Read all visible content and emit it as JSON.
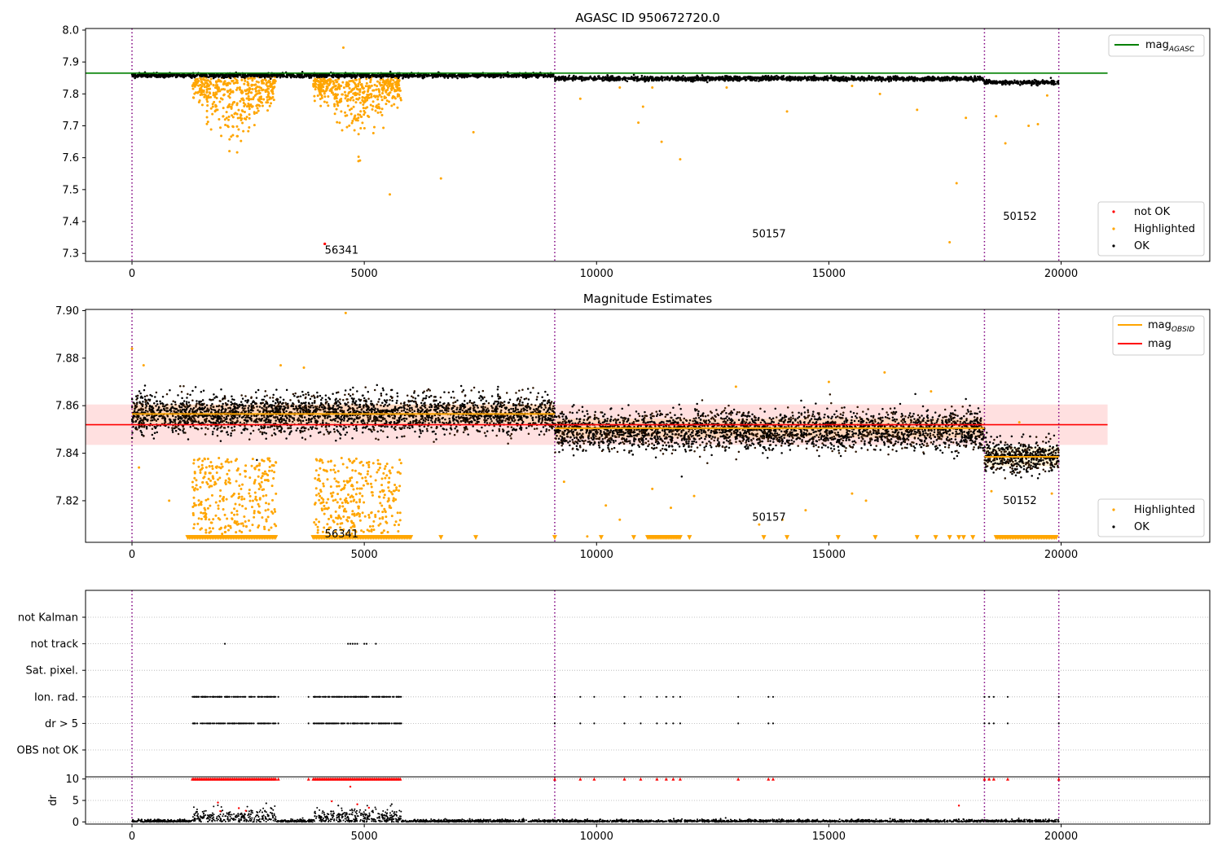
{
  "chart_data": [
    {
      "type": "scatter",
      "title": "AGASC ID 950672720.0",
      "xlabel": "",
      "ylabel": "",
      "xlim": [
        -1000,
        23200
      ],
      "ylim": [
        7.275,
        8.005
      ],
      "xticks": [
        0,
        5000,
        10000,
        15000,
        20000
      ],
      "yticks": [
        7.3,
        7.4,
        7.5,
        7.6,
        7.7,
        7.8,
        7.9,
        8.0
      ],
      "grid": false,
      "obs_boundaries": [
        0,
        9100,
        18350,
        19950
      ],
      "reference_lines": [
        {
          "name": "mag$_{AGASC}$",
          "label_main": "mag",
          "label_sub": "AGASC",
          "y": 7.865,
          "x_range": [
            -1000,
            21000
          ],
          "color": "#008000"
        }
      ],
      "series": [
        {
          "name": "not OK",
          "color": "#ff0000"
        },
        {
          "name": "Highlighted",
          "color": "#ffa500"
        },
        {
          "name": "OK",
          "color": "#000000"
        }
      ],
      "ok_bands": [
        {
          "x0": 0,
          "x1": 9100,
          "ymid": 7.858,
          "spread": 0.006
        },
        {
          "x0": 9100,
          "x1": 18350,
          "ymid": 7.848,
          "spread": 0.006
        },
        {
          "x0": 18350,
          "x1": 19950,
          "ymid": 7.836,
          "spread": 0.006
        }
      ],
      "highlight_clusters": [
        {
          "x": [
            1300,
            3100
          ],
          "y": [
            7.43,
            7.86
          ],
          "n": 420
        },
        {
          "x": [
            3900,
            5800
          ],
          "y": [
            7.35,
            7.86
          ],
          "n": 460
        }
      ],
      "highlight_points": [
        {
          "x": 4550,
          "y": 7.945
        },
        {
          "x": 7350,
          "y": 7.68
        },
        {
          "x": 6650,
          "y": 7.535
        },
        {
          "x": 5550,
          "y": 7.485
        },
        {
          "x": 9650,
          "y": 7.785
        },
        {
          "x": 10900,
          "y": 7.71
        },
        {
          "x": 11400,
          "y": 7.65
        },
        {
          "x": 11800,
          "y": 7.595
        },
        {
          "x": 14100,
          "y": 7.745
        },
        {
          "x": 16900,
          "y": 7.75
        },
        {
          "x": 17600,
          "y": 7.335
        },
        {
          "x": 17750,
          "y": 7.52
        },
        {
          "x": 17950,
          "y": 7.725
        },
        {
          "x": 18600,
          "y": 7.73
        },
        {
          "x": 18800,
          "y": 7.645
        },
        {
          "x": 19300,
          "y": 7.7
        },
        {
          "x": 19500,
          "y": 7.705
        },
        {
          "x": 12800,
          "y": 7.82
        },
        {
          "x": 15500,
          "y": 7.825
        },
        {
          "x": 16100,
          "y": 7.8
        },
        {
          "x": 19700,
          "y": 7.795
        },
        {
          "x": 10500,
          "y": 7.82
        },
        {
          "x": 11000,
          "y": 7.76
        },
        {
          "x": 11200,
          "y": 7.82
        }
      ],
      "notok_points": [
        {
          "x": 4150,
          "y": 7.33
        }
      ],
      "annotations": [
        {
          "text": "56341",
          "x": 4150,
          "y": 7.31
        },
        {
          "text": "50157",
          "x": 13350,
          "y": 7.36
        },
        {
          "text": "50152",
          "x": 18750,
          "y": 7.415
        }
      ]
    },
    {
      "type": "scatter",
      "title": "Magnitude Estimates",
      "xlabel": "",
      "ylabel": "",
      "xlim": [
        -1000,
        23200
      ],
      "ylim": [
        7.8025,
        7.9005
      ],
      "xticks": [
        0,
        5000,
        10000,
        15000,
        20000
      ],
      "yticks": [
        7.82,
        7.84,
        7.86,
        7.88,
        7.9
      ],
      "grid": false,
      "obs_boundaries": [
        0,
        9100,
        18350,
        19950
      ],
      "reference_lines": [
        {
          "name": "mag$_{OBSID}$",
          "label_main": "mag",
          "label_sub": "OBSID",
          "color": "#ffa500",
          "segments": [
            {
              "x0": 0,
              "x1": 9100,
              "y": 7.8565,
              "band": 0.004
            },
            {
              "x0": 9100,
              "x1": 18350,
              "y": 7.8505,
              "band": 0.004
            },
            {
              "x0": 18350,
              "x1": 19950,
              "y": 7.8385,
              "band": 0.004
            }
          ]
        },
        {
          "name": "mag",
          "label_main": "mag",
          "label_sub": "",
          "y": 7.852,
          "x_range": [
            -1000,
            21000
          ],
          "band": [
            7.8435,
            7.8605
          ],
          "color": "#ff0000"
        }
      ],
      "series": [
        {
          "name": "Highlighted",
          "color": "#ffa500"
        },
        {
          "name": "OK",
          "color": "#000000"
        }
      ],
      "ok_bands": [
        {
          "x0": 0,
          "x1": 9100,
          "ymid": 7.8565,
          "spread": 0.0065
        },
        {
          "x0": 9100,
          "x1": 18350,
          "ymid": 7.8495,
          "spread": 0.0065
        },
        {
          "x0": 18350,
          "x1": 19950,
          "ymid": 7.8385,
          "spread": 0.0055
        }
      ],
      "highlight_clusters": [
        {
          "x": [
            1300,
            3100
          ],
          "y": [
            7.806,
            7.838
          ],
          "n": 300
        },
        {
          "x": [
            3900,
            5800
          ],
          "y": [
            7.806,
            7.838
          ],
          "n": 320
        }
      ],
      "highlight_points": [
        {
          "x": 4600,
          "y": 7.899
        },
        {
          "x": 0,
          "y": 7.884
        },
        {
          "x": 250,
          "y": 7.877
        },
        {
          "x": 3200,
          "y": 7.877
        },
        {
          "x": 3700,
          "y": 7.876
        },
        {
          "x": 150,
          "y": 7.834
        },
        {
          "x": 800,
          "y": 7.82
        },
        {
          "x": 9300,
          "y": 7.828
        },
        {
          "x": 10500,
          "y": 7.812
        },
        {
          "x": 11200,
          "y": 7.825
        },
        {
          "x": 12100,
          "y": 7.822
        },
        {
          "x": 13500,
          "y": 7.81
        },
        {
          "x": 14000,
          "y": 7.812
        },
        {
          "x": 14500,
          "y": 7.816
        },
        {
          "x": 15500,
          "y": 7.823
        },
        {
          "x": 15800,
          "y": 7.82
        },
        {
          "x": 16200,
          "y": 7.874
        },
        {
          "x": 17200,
          "y": 7.866
        },
        {
          "x": 18500,
          "y": 7.824
        },
        {
          "x": 19100,
          "y": 7.853
        },
        {
          "x": 19800,
          "y": 7.823
        },
        {
          "x": 13000,
          "y": 7.868
        },
        {
          "x": 15000,
          "y": 7.87
        },
        {
          "x": 9800,
          "y": 7.805
        },
        {
          "x": 11600,
          "y": 7.817
        },
        {
          "x": 10200,
          "y": 7.818
        }
      ],
      "lower_limit_markers": {
        "y": 7.8045,
        "ranges": [
          [
            1200,
            3100
          ],
          [
            3900,
            6000
          ],
          [
            11100,
            11800
          ],
          [
            18600,
            19900
          ]
        ],
        "x": [
          6650,
          7400,
          9100,
          10100,
          10800,
          12000,
          13600,
          14100,
          15200,
          16000,
          16900,
          17300,
          17600,
          17800,
          17900,
          18100
        ]
      },
      "annotations": [
        {
          "text": "56341",
          "x": 4150,
          "y": 7.806
        },
        {
          "text": "50157",
          "x": 13350,
          "y": 7.813
        },
        {
          "text": "50152",
          "x": 18750,
          "y": 7.82
        }
      ]
    },
    {
      "type": "scatter",
      "title": "",
      "xlabel": "",
      "ylabel": "",
      "xlim": [
        -1000,
        23200
      ],
      "categories": [
        "not Kalman",
        "not track",
        "Sat. pixel.",
        "Ion. rad.",
        "dr > 5",
        "OBS not OK"
      ],
      "grid": true,
      "obs_boundaries": [
        0,
        9100,
        18350,
        19950
      ],
      "flag_points": {
        "not track": [
          2000,
          4650,
          4700,
          4750,
          4800,
          4850,
          5000,
          5050,
          5250
        ],
        "Ion. rad.": {
          "ranges": [
            [
              1300,
              3100
            ],
            [
              3900,
              5800
            ]
          ],
          "x": [
            3150,
            3800,
            9100,
            9650,
            9950,
            10600,
            10950,
            11300,
            11500,
            11650,
            11800,
            13050,
            13700,
            13800,
            18350,
            18450,
            18550,
            18850,
            19950
          ]
        },
        "dr > 5": {
          "ranges": [
            [
              1300,
              3100
            ],
            [
              3900,
              5800
            ]
          ],
          "x": [
            3150,
            3800,
            9100,
            9650,
            9950,
            10600,
            10950,
            11300,
            11500,
            11650,
            11800,
            13050,
            13700,
            13800,
            18350,
            18450,
            18550,
            18850,
            19950
          ]
        }
      }
    },
    {
      "type": "scatter",
      "title": "",
      "xlabel": "",
      "ylabel": "dr",
      "xlim": [
        -1000,
        23200
      ],
      "ylim": [
        -0.5,
        10.5
      ],
      "xticks": [
        0,
        5000,
        10000,
        15000,
        20000
      ],
      "yticks": [
        0,
        5,
        10
      ],
      "grid": true,
      "obs_boundaries": [
        0,
        9100,
        18350,
        19950
      ],
      "clipped_value": 10,
      "series": [
        {
          "name": "OK",
          "color": "#000000"
        },
        {
          "name": "not OK",
          "color": "#ff0000"
        }
      ]
    }
  ],
  "legends": {
    "top_lines": [
      "mag$_{AGASC}$"
    ],
    "top_points": [
      "not OK",
      "Highlighted",
      "OK"
    ],
    "mid_lines": [
      "mag$_{OBSID}$",
      "mag"
    ],
    "mid_points": [
      "Highlighted",
      "OK"
    ]
  }
}
